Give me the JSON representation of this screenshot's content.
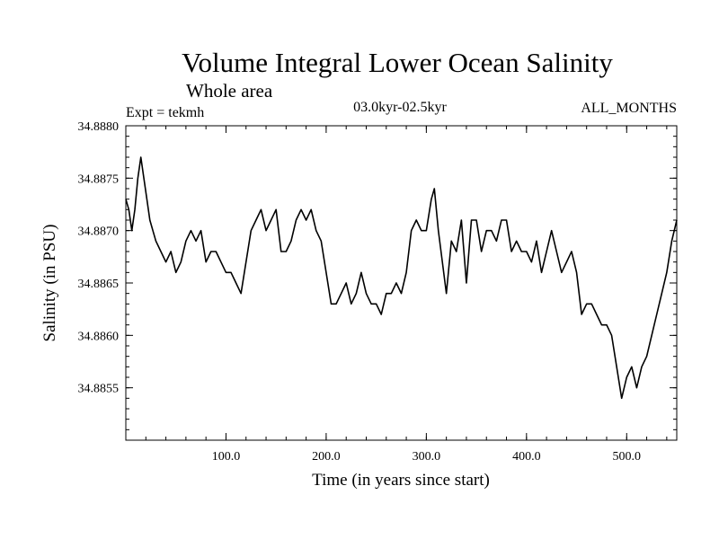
{
  "chart_data": {
    "type": "line",
    "title": "Volume Integral Lower Ocean Salinity",
    "subtitle": "Whole area",
    "experiment": "Expt = tekmh",
    "period": "03.0kyr-02.5kyr",
    "months": "ALL_MONTHS",
    "xlabel": "Time (in years since start)",
    "ylabel": "Salinity (in PSU)",
    "xlim": [
      0,
      550
    ],
    "ylim": [
      34.885,
      34.888
    ],
    "xticks": [
      100,
      200,
      300,
      400,
      500
    ],
    "xtick_labels": [
      "100.0",
      "200.0",
      "300.0",
      "400.0",
      "500.0"
    ],
    "yticks": [
      34.8855,
      34.886,
      34.8865,
      34.887,
      34.8875,
      34.888
    ],
    "ytick_labels": [
      "34.8855",
      "34.8860",
      "34.8865",
      "34.8870",
      "34.8875",
      "34.8880"
    ],
    "grid": false,
    "series": [
      {
        "name": "salinity",
        "x": [
          0,
          3,
          6,
          9,
          12,
          15,
          18,
          21,
          24,
          27,
          30,
          35,
          40,
          45,
          50,
          55,
          60,
          65,
          70,
          75,
          80,
          85,
          90,
          95,
          100,
          105,
          110,
          115,
          120,
          125,
          130,
          135,
          140,
          145,
          150,
          155,
          160,
          165,
          170,
          175,
          180,
          185,
          190,
          195,
          200,
          205,
          210,
          215,
          220,
          225,
          230,
          235,
          240,
          245,
          250,
          255,
          260,
          265,
          270,
          275,
          280,
          285,
          290,
          295,
          300,
          305,
          308,
          312,
          316,
          320,
          325,
          330,
          335,
          340,
          345,
          350,
          355,
          360,
          365,
          370,
          375,
          380,
          385,
          390,
          395,
          400,
          405,
          410,
          415,
          420,
          425,
          430,
          435,
          440,
          445,
          450,
          455,
          460,
          465,
          470,
          475,
          480,
          485,
          490,
          495,
          500,
          505,
          510,
          515,
          520,
          525,
          530,
          535,
          540,
          545,
          550
        ],
        "values": [
          34.8873,
          34.8872,
          34.887,
          34.8872,
          34.8875,
          34.8877,
          34.8875,
          34.8873,
          34.8871,
          34.887,
          34.8869,
          34.8868,
          34.8867,
          34.8868,
          34.8866,
          34.8867,
          34.8869,
          34.887,
          34.8869,
          34.887,
          34.8867,
          34.8868,
          34.8868,
          34.8867,
          34.8866,
          34.8866,
          34.8865,
          34.8864,
          34.8867,
          34.887,
          34.8871,
          34.8872,
          34.887,
          34.8871,
          34.8872,
          34.8868,
          34.8868,
          34.8869,
          34.8871,
          34.8872,
          34.8871,
          34.8872,
          34.887,
          34.8869,
          34.8866,
          34.8863,
          34.8863,
          34.8864,
          34.8865,
          34.8863,
          34.8864,
          34.8866,
          34.8864,
          34.8863,
          34.8863,
          34.8862,
          34.8864,
          34.8864,
          34.8865,
          34.8864,
          34.8866,
          34.887,
          34.8871,
          34.887,
          34.887,
          34.8873,
          34.8874,
          34.887,
          34.8867,
          34.8864,
          34.8869,
          34.8868,
          34.8871,
          34.8865,
          34.8871,
          34.8871,
          34.8868,
          34.887,
          34.887,
          34.8869,
          34.8871,
          34.8871,
          34.8868,
          34.8869,
          34.8868,
          34.8868,
          34.8867,
          34.8869,
          34.8866,
          34.8868,
          34.887,
          34.8868,
          34.8866,
          34.8867,
          34.8868,
          34.8866,
          34.8862,
          34.8863,
          34.8863,
          34.8862,
          34.8861,
          34.8861,
          34.886,
          34.8857,
          34.8854,
          34.8856,
          34.8857,
          34.8855,
          34.8857,
          34.8858,
          34.886,
          34.8862,
          34.8864,
          34.8866,
          34.8869,
          34.8871
        ]
      }
    ]
  }
}
